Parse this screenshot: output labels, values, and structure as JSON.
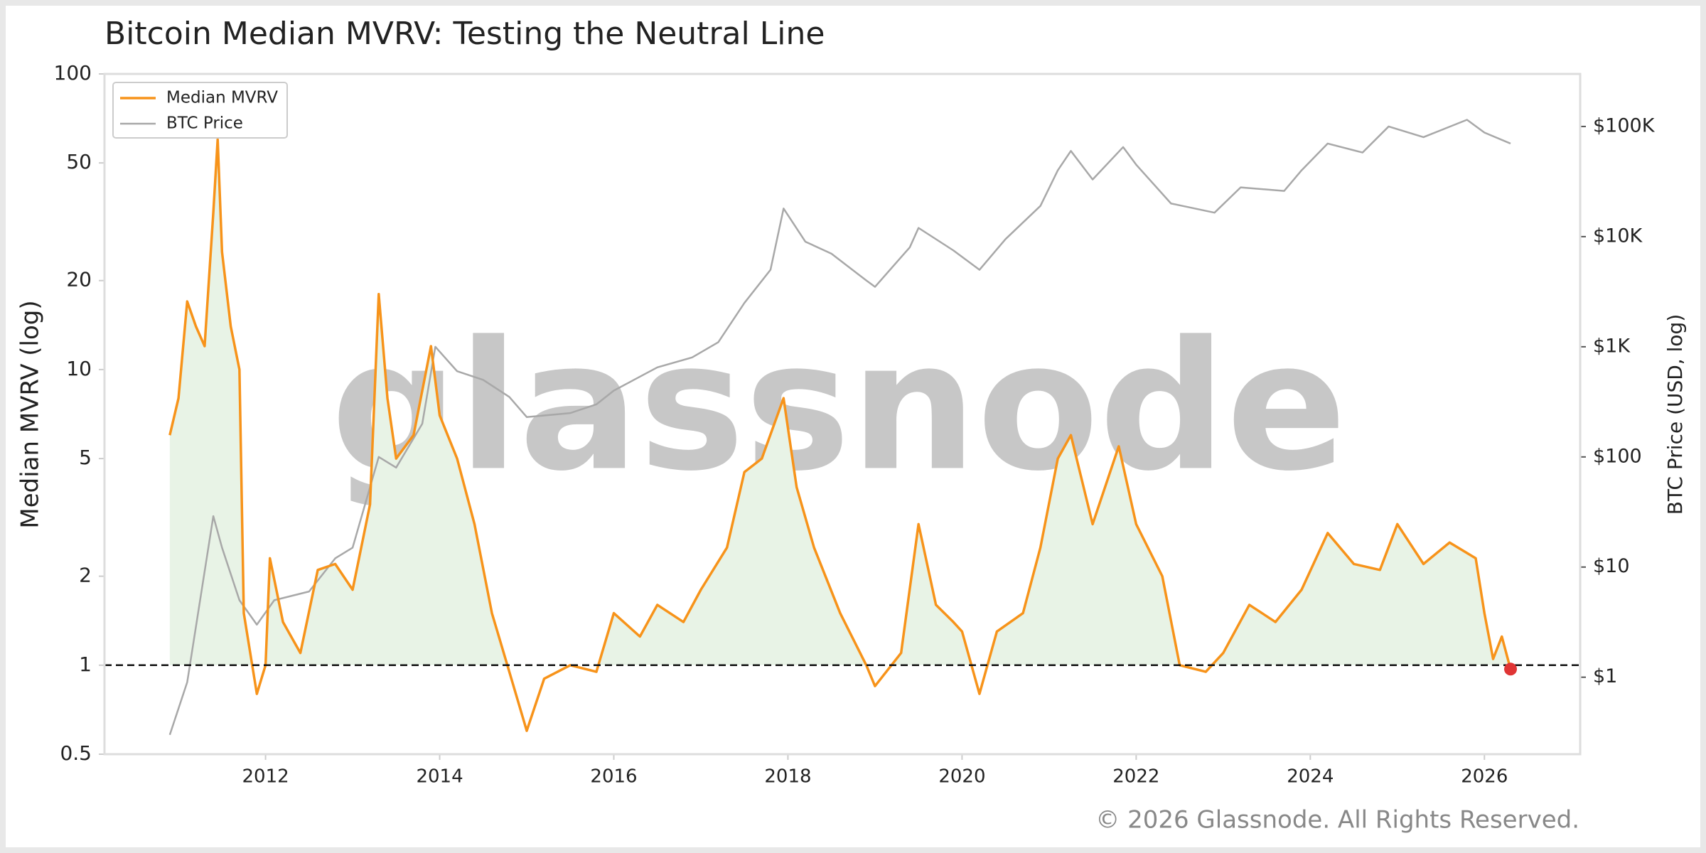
{
  "chart_data": {
    "type": "line",
    "title": "Bitcoin Median MVRV: Testing the Neutral Line",
    "y_label": "Median MVRV (log)",
    "y2_label": "BTC Price (USD, log)",
    "watermark": "glassnode",
    "footer": "© 2026 Glassnode. All Rights Reserved.",
    "legend": "upper left",
    "log_y": true,
    "log_y2": true,
    "xlim": [
      2010.15,
      2027.1
    ],
    "xticks": [
      2012,
      2014,
      2016,
      2018,
      2020,
      2022,
      2024,
      2026
    ],
    "ylim": [
      0.5,
      100
    ],
    "yticks": [
      0.5,
      1,
      2,
      5,
      10,
      20,
      50,
      100
    ],
    "y2lim": [
      0.2,
      300000
    ],
    "y2ticks": [
      {
        "value": 1,
        "label": "$1"
      },
      {
        "value": 10,
        "label": "$10"
      },
      {
        "value": 100,
        "label": "$100"
      },
      {
        "value": 1000,
        "label": "$1K"
      },
      {
        "value": 10000,
        "label": "$10K"
      },
      {
        "value": 100000,
        "label": "$100K"
      }
    ],
    "reference_line": 1,
    "fill_color": "#e8f3e6",
    "last_point_color": "#e03535",
    "series": [
      {
        "name": "Median MVRV",
        "color": "#f7931a",
        "x": [
          2010.9,
          2011.0,
          2011.1,
          2011.2,
          2011.3,
          2011.4,
          2011.45,
          2011.5,
          2011.6,
          2011.7,
          2011.75,
          2011.9,
          2012.0,
          2012.05,
          2012.2,
          2012.4,
          2012.6,
          2012.8,
          2013.0,
          2013.2,
          2013.3,
          2013.4,
          2013.5,
          2013.7,
          2013.9,
          2014.0,
          2014.2,
          2014.4,
          2014.6,
          2014.8,
          2015.0,
          2015.2,
          2015.5,
          2015.8,
          2016.0,
          2016.3,
          2016.5,
          2016.8,
          2017.0,
          2017.3,
          2017.5,
          2017.7,
          2017.95,
          2018.1,
          2018.3,
          2018.6,
          2018.9,
          2019.0,
          2019.3,
          2019.5,
          2019.7,
          2019.9,
          2020.0,
          2020.2,
          2020.4,
          2020.7,
          2020.9,
          2021.1,
          2021.25,
          2021.5,
          2021.8,
          2022.0,
          2022.3,
          2022.5,
          2022.8,
          2023.0,
          2023.3,
          2023.6,
          2023.9,
          2024.2,
          2024.5,
          2024.8,
          2025.0,
          2025.3,
          2025.6,
          2025.9,
          2026.0,
          2026.1,
          2026.2,
          2026.3
        ],
        "values": [
          6,
          8,
          17,
          14,
          12,
          34,
          60,
          25,
          14,
          10,
          1.5,
          0.8,
          1.0,
          2.3,
          1.4,
          1.1,
          2.1,
          2.2,
          1.8,
          3.5,
          18,
          8,
          5,
          6,
          12,
          7,
          5,
          3,
          1.5,
          0.95,
          0.6,
          0.9,
          1.0,
          0.95,
          1.5,
          1.25,
          1.6,
          1.4,
          1.8,
          2.5,
          4.5,
          5,
          8,
          4,
          2.5,
          1.5,
          1.0,
          0.85,
          1.1,
          3,
          1.6,
          1.4,
          1.3,
          0.8,
          1.3,
          1.5,
          2.5,
          5,
          6,
          3,
          5.5,
          3,
          2,
          1.0,
          0.95,
          1.1,
          1.6,
          1.4,
          1.8,
          2.8,
          2.2,
          2.1,
          3,
          2.2,
          2.6,
          2.3,
          1.5,
          1.05,
          1.25,
          0.97
        ]
      },
      {
        "name": "BTC Price",
        "color": "#a8a8a8",
        "axis": "y2",
        "x": [
          2010.9,
          2011.1,
          2011.4,
          2011.5,
          2011.7,
          2011.9,
          2012.1,
          2012.5,
          2012.8,
          2013.0,
          2013.3,
          2013.5,
          2013.8,
          2013.95,
          2014.2,
          2014.5,
          2014.8,
          2015.0,
          2015.5,
          2015.8,
          2016.0,
          2016.5,
          2016.9,
          2017.2,
          2017.5,
          2017.8,
          2017.95,
          2018.2,
          2018.5,
          2018.9,
          2019.0,
          2019.4,
          2019.5,
          2019.9,
          2020.2,
          2020.5,
          2020.9,
          2021.1,
          2021.25,
          2021.5,
          2021.85,
          2022.0,
          2022.4,
          2022.9,
          2023.2,
          2023.7,
          2023.9,
          2024.2,
          2024.6,
          2024.9,
          2025.3,
          2025.8,
          2026.0,
          2026.3
        ],
        "values": [
          0.3,
          0.9,
          29,
          15,
          5,
          3,
          5,
          6,
          12,
          15,
          100,
          80,
          200,
          1000,
          600,
          500,
          350,
          230,
          250,
          300,
          400,
          650,
          800,
          1100,
          2500,
          5000,
          18000,
          9000,
          7000,
          4000,
          3500,
          8000,
          12000,
          7500,
          5000,
          9500,
          19000,
          40000,
          60000,
          33000,
          65000,
          45000,
          20000,
          16500,
          28000,
          26000,
          40000,
          70000,
          58000,
          100000,
          80000,
          115000,
          88000,
          70000
        ]
      }
    ]
  }
}
